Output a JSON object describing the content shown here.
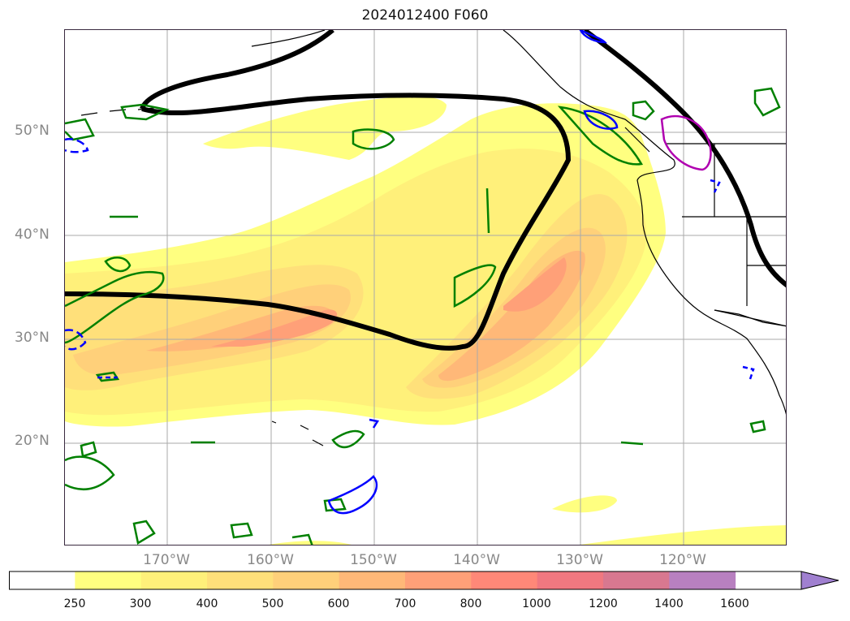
{
  "title": "2024012400 F060",
  "lat_labels": [
    "50°N",
    "40°N",
    "30°N",
    "20°N"
  ],
  "lon_labels": [
    "170°W",
    "160°W",
    "150°W",
    "140°W",
    "130°W",
    "120°W"
  ],
  "colorbar": {
    "ticks": [
      "250",
      "300",
      "400",
      "500",
      "600",
      "700",
      "800",
      "1000",
      "1200",
      "1400",
      "1600"
    ],
    "colors": [
      "#ffffff",
      "#ffff80",
      "#fff07a",
      "#ffe07a",
      "#ffd07a",
      "#ffb878",
      "#ffa078",
      "#ff8878",
      "#f07880",
      "#d87890",
      "#b880c0",
      "#a080d0"
    ],
    "extend": "max"
  },
  "colors": {
    "ivt_low": "#ffff80",
    "ivt_mid": "#ffd07a",
    "ivt_high": "#ffa078",
    "contour_black": "#000000",
    "contour_green": "#008000",
    "contour_blue": "#0000ff",
    "contour_magenta": "#b000b0"
  }
}
